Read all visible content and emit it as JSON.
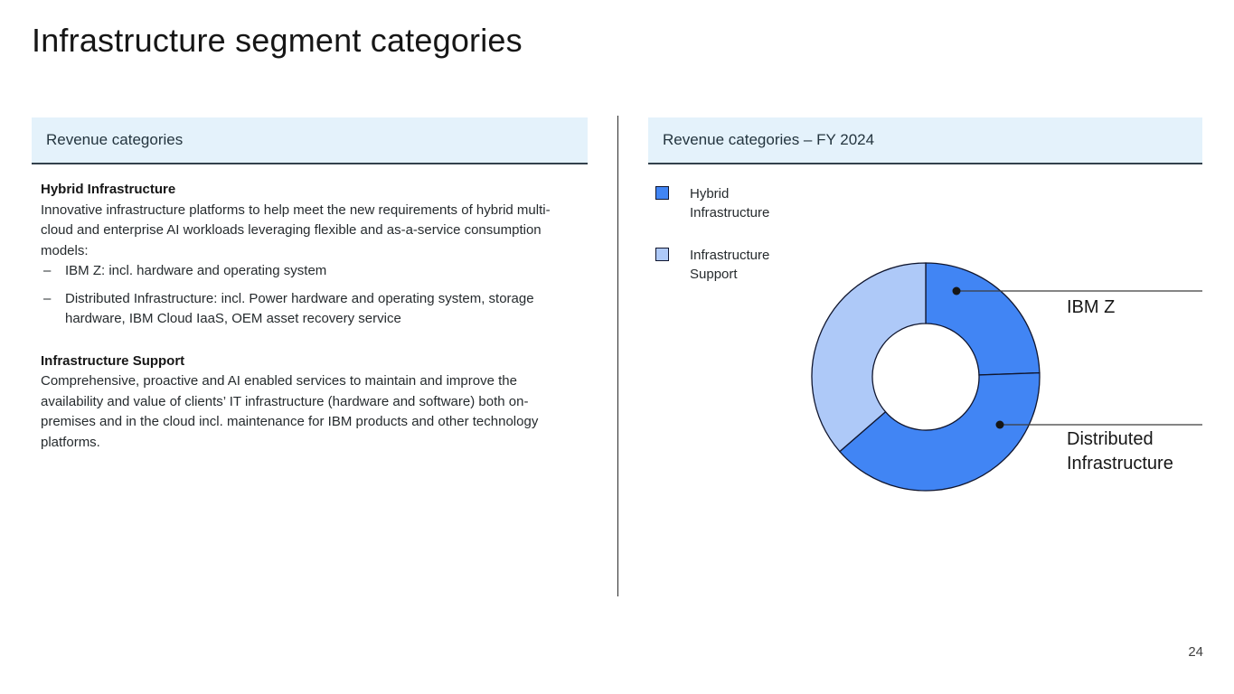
{
  "title": "Infrastructure segment categories",
  "page_number": "24",
  "bullet_char": "–",
  "left_panel": {
    "header": "Revenue categories",
    "sections": [
      {
        "heading": "Hybrid Infrastructure",
        "body": "Innovative infrastructure platforms to help meet the new requirements of hybrid multi-cloud and enterprise AI workloads leveraging flexible and as-a-service consumption models:",
        "bullets": [
          "IBM Z: incl. hardware and operating system",
          "Distributed Infrastructure: incl. Power hardware and operating system, storage hardware, IBM Cloud IaaS, OEM asset recovery service"
        ]
      },
      {
        "heading": "Infrastructure Support",
        "body": "Comprehensive, proactive and AI enabled services to maintain and improve the availability and value of clients’ IT infrastructure (hardware and software) both on-premises and in the cloud incl. maintenance for IBM products and other technology platforms.",
        "bullets": []
      }
    ]
  },
  "right_panel": {
    "header": "Revenue categories – FY 2024",
    "legend": [
      {
        "label": "Hybrid\nInfrastructure",
        "color": "#4185f4"
      },
      {
        "label": "Infrastructure\nSupport",
        "color": "#aec9f8"
      }
    ]
  },
  "chart_data": {
    "type": "pie",
    "subtype": "donut",
    "title": "Revenue categories – FY 2024",
    "hole_ratio": 0.47,
    "value_note": "no numeric labels shown; shares estimated from arc angles",
    "segments": [
      {
        "label": "IBM Z",
        "group": "Hybrid Infrastructure",
        "start_deg": 0,
        "end_deg": 88,
        "value_pct_est": 24,
        "color": "#4185f4"
      },
      {
        "label": "Distributed Infrastructure",
        "group": "Hybrid Infrastructure",
        "start_deg": 88,
        "end_deg": 229,
        "value_pct_est": 39,
        "color": "#4185f4"
      },
      {
        "label": "Infrastructure Support",
        "group": "Infrastructure Support",
        "start_deg": 229,
        "end_deg": 360,
        "value_pct_est": 37,
        "color": "#aec9f8"
      }
    ],
    "annotations": [
      {
        "label": "IBM Z"
      },
      {
        "label": "Distributed\nInfrastructure"
      }
    ],
    "legend_position": "top-left",
    "colors": {
      "outline": "#10162f",
      "leader": "#3c3c3c",
      "dot": "#161616"
    }
  },
  "colors": {
    "header_bg": "#e4f2fb",
    "header_border": "#33414c",
    "accent_dark_blue": "#4185f4",
    "accent_light_blue": "#aec9f8"
  }
}
